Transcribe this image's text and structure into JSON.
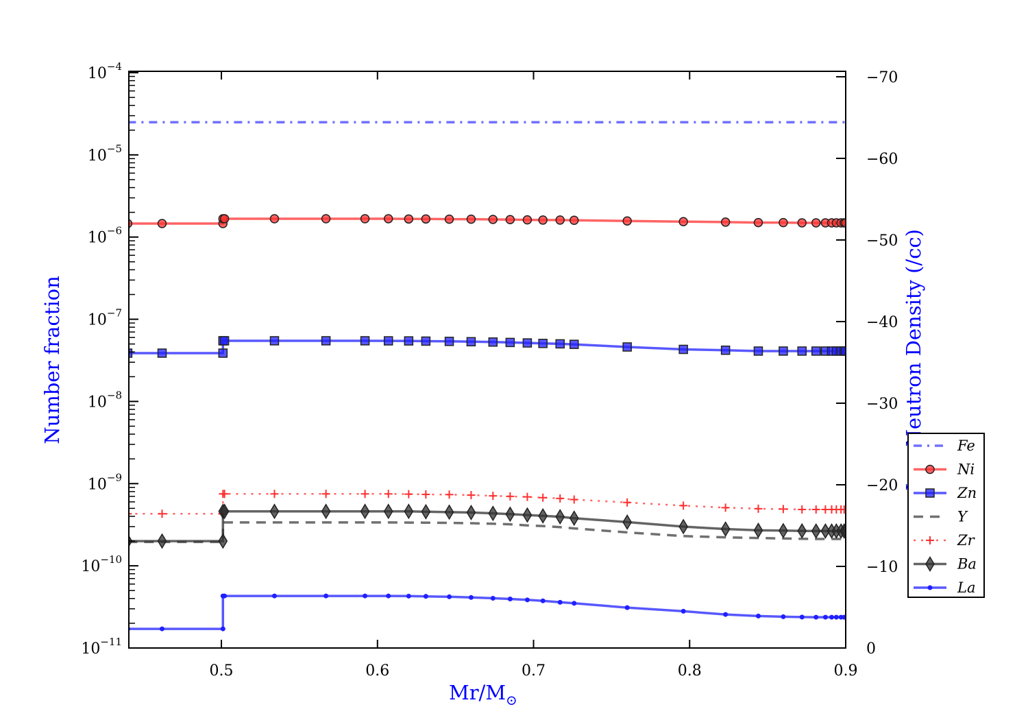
{
  "chart_data": {
    "type": "line",
    "title": "",
    "xlabel": "Mr/M",
    "xlabel_sub": "⊙",
    "ylabel": "Number fraction",
    "ylabel_right": "Log Neutron Density (/cc)",
    "xlim": [
      0.4407,
      0.9
    ],
    "ylim": [
      1e-11,
      0.0001
    ],
    "yscale": "log",
    "ylim_right": [
      0,
      -70.5
    ],
    "xticks": [
      0.5,
      0.6,
      0.7,
      0.8,
      0.9
    ],
    "xtick_labels": [
      "0.5",
      "0.6",
      "0.7",
      "0.8",
      "0.9"
    ],
    "yticks_exp": [
      -4,
      -5,
      -6,
      -7,
      -8,
      -9,
      -10,
      -11
    ],
    "ytick_base": "10",
    "yticks_right": [
      -70,
      -60,
      -50,
      -40,
      -30,
      -20,
      -10,
      0
    ],
    "ytick_right_labels": [
      "−70",
      "−60",
      "−50",
      "−40",
      "−30",
      "−20",
      "−10",
      "0"
    ],
    "grid": false,
    "legend_position": "lower-right",
    "x": [
      0.44,
      0.462,
      0.501,
      0.501,
      0.502,
      0.534,
      0.567,
      0.592,
      0.607,
      0.62,
      0.631,
      0.646,
      0.66,
      0.674,
      0.685,
      0.696,
      0.706,
      0.717,
      0.726,
      0.76,
      0.796,
      0.823,
      0.844,
      0.86,
      0.872,
      0.881,
      0.887,
      0.891,
      0.894,
      0.897,
      0.899,
      0.9
    ],
    "series": [
      {
        "name": "Fe",
        "color": "#4040ff",
        "style": "dashdot",
        "marker": "none",
        "x": [
          0.44,
          0.9
        ],
        "y": [
          2.5e-05,
          2.5e-05
        ]
      },
      {
        "name": "Ni",
        "color": "#ff3030",
        "style": "solid",
        "marker": "circle",
        "y": [
          1.46e-06,
          1.46e-06,
          1.46e-06,
          1.67e-06,
          1.67e-06,
          1.67e-06,
          1.67e-06,
          1.67e-06,
          1.67e-06,
          1.66e-06,
          1.66e-06,
          1.65e-06,
          1.65e-06,
          1.64e-06,
          1.63e-06,
          1.62e-06,
          1.61e-06,
          1.61e-06,
          1.6e-06,
          1.57e-06,
          1.54e-06,
          1.52e-06,
          1.5e-06,
          1.5e-06,
          1.49e-06,
          1.49e-06,
          1.49e-06,
          1.49e-06,
          1.49e-06,
          1.49e-06,
          1.49e-06,
          1.49e-06
        ]
      },
      {
        "name": "Zn",
        "color": "#2020ff",
        "style": "solid",
        "marker": "square",
        "y": [
          3.87e-08,
          3.87e-08,
          3.87e-08,
          5.47e-08,
          5.47e-08,
          5.47e-08,
          5.47e-08,
          5.47e-08,
          5.46e-08,
          5.45e-08,
          5.42e-08,
          5.38e-08,
          5.33e-08,
          5.28e-08,
          5.22e-08,
          5.15e-08,
          5.08e-08,
          5.02e-08,
          4.95e-08,
          4.6e-08,
          4.3e-08,
          4.2e-08,
          4.1e-08,
          4.1e-08,
          4.1e-08,
          4.1e-08,
          4.1e-08,
          4.1e-08,
          4.1e-08,
          4.1e-08,
          4.1e-08,
          4.1e-08
        ]
      },
      {
        "name": "Y",
        "color": "#404040",
        "style": "dashed",
        "marker": "none",
        "y": [
          1.95e-10,
          1.95e-10,
          1.95e-10,
          3.37e-10,
          3.37e-10,
          3.37e-10,
          3.37e-10,
          3.37e-10,
          3.37e-10,
          3.36e-10,
          3.35e-10,
          3.33e-10,
          3.3e-10,
          3.25e-10,
          3.2e-10,
          3.1e-10,
          3.05e-10,
          2.95e-10,
          2.85e-10,
          2.55e-10,
          2.3e-10,
          2.22e-10,
          2.18e-10,
          2.15e-10,
          2.13e-10,
          2.12e-10,
          2.12e-10,
          2.12e-10,
          2.12e-10,
          2.12e-10,
          2.12e-10,
          2.12e-10
        ]
      },
      {
        "name": "Zr",
        "color": "#ff3030",
        "style": "dotted",
        "marker": "plus",
        "y": [
          4.3e-10,
          4.3e-10,
          4.3e-10,
          7.5e-10,
          7.5e-10,
          7.5e-10,
          7.5e-10,
          7.5e-10,
          7.5e-10,
          7.45e-10,
          7.4e-10,
          7.35e-10,
          7.25e-10,
          7.1e-10,
          7e-10,
          6.9e-10,
          6.75e-10,
          6.6e-10,
          6.4e-10,
          5.9e-10,
          5.4e-10,
          5.1e-10,
          4.95e-10,
          4.9e-10,
          4.85e-10,
          4.85e-10,
          4.85e-10,
          4.85e-10,
          4.85e-10,
          4.85e-10,
          4.85e-10,
          4.85e-10
        ]
      },
      {
        "name": "Ba",
        "color": "#303030",
        "style": "solid",
        "marker": "diamond",
        "y": [
          2e-10,
          2e-10,
          2e-10,
          4.6e-10,
          4.6e-10,
          4.6e-10,
          4.6e-10,
          4.6e-10,
          4.6e-10,
          4.6e-10,
          4.55e-10,
          4.5e-10,
          4.45e-10,
          4.35e-10,
          4.25e-10,
          4.15e-10,
          4.05e-10,
          3.95e-10,
          3.8e-10,
          3.4e-10,
          3e-10,
          2.8e-10,
          2.7e-10,
          2.68e-10,
          2.66e-10,
          2.65e-10,
          2.65e-10,
          2.65e-10,
          2.65e-10,
          2.65e-10,
          2.65e-10,
          2.65e-10
        ]
      },
      {
        "name": "La",
        "color": "#2020ff",
        "style": "solid",
        "marker": "dot",
        "y": [
          1.71e-11,
          1.71e-11,
          1.71e-11,
          4.3e-11,
          4.3e-11,
          4.3e-11,
          4.3e-11,
          4.3e-11,
          4.3e-11,
          4.28e-11,
          4.25e-11,
          4.2e-11,
          4.12e-11,
          4.03e-11,
          3.95e-11,
          3.85e-11,
          3.75e-11,
          3.6e-11,
          3.5e-11,
          3.1e-11,
          2.8e-11,
          2.56e-11,
          2.45e-11,
          2.4e-11,
          2.38e-11,
          2.37e-11,
          2.37e-11,
          2.37e-11,
          2.37e-11,
          2.37e-11,
          2.37e-11,
          2.37e-11
        ]
      }
    ]
  }
}
